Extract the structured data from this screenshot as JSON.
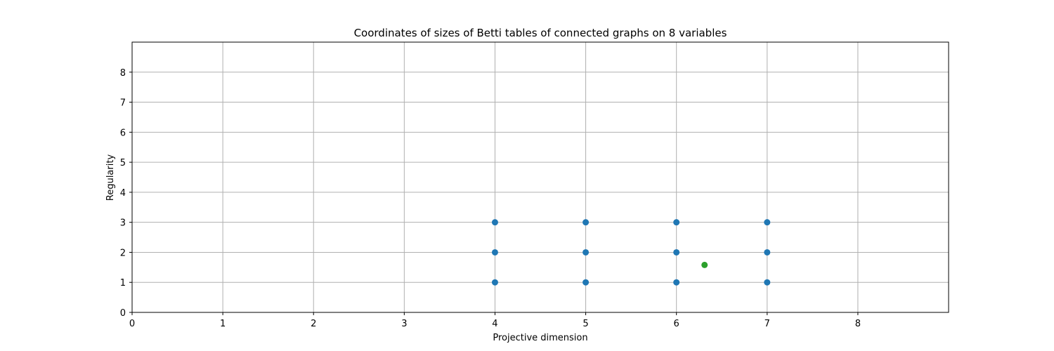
{
  "chart_data": {
    "type": "scatter",
    "title": "Coordinates of sizes of Betti tables of connected graphs on 8 variables",
    "xlabel": "Projective dimension",
    "ylabel": "Regularity",
    "xlim": [
      0,
      9
    ],
    "ylim": [
      0,
      9
    ],
    "xticks": [
      0,
      1,
      2,
      3,
      4,
      5,
      6,
      7,
      8
    ],
    "yticks": [
      0,
      1,
      2,
      3,
      4,
      5,
      6,
      7,
      8
    ],
    "grid": true,
    "series": [
      {
        "color": "#1f77b4",
        "points": [
          {
            "x": 4,
            "y": 1
          },
          {
            "x": 4,
            "y": 2
          },
          {
            "x": 4,
            "y": 3
          },
          {
            "x": 5,
            "y": 1
          },
          {
            "x": 5,
            "y": 2
          },
          {
            "x": 5,
            "y": 3
          },
          {
            "x": 6,
            "y": 1
          },
          {
            "x": 6,
            "y": 2
          },
          {
            "x": 6,
            "y": 3
          },
          {
            "x": 7,
            "y": 1
          },
          {
            "x": 7,
            "y": 2
          },
          {
            "x": 7,
            "y": 3
          }
        ]
      },
      {
        "color": "#2ca02c",
        "points": [
          {
            "x": 6.31,
            "y": 1.58
          }
        ]
      }
    ]
  }
}
